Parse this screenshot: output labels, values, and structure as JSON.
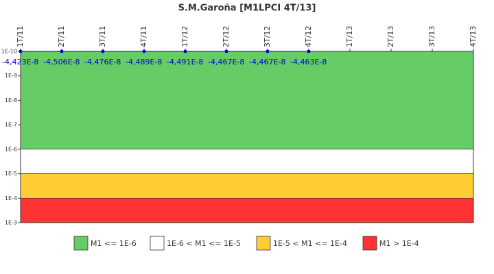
{
  "chart_data": {
    "type": "line",
    "title": "S.M.Garoña [M1LPCI 4T/13]",
    "categories": [
      "1T/11",
      "2T/11",
      "3T/11",
      "4T/11",
      "1T/12",
      "2T/12",
      "3T/12",
      "4T/12",
      "1T/13",
      "2T/13",
      "3T/13",
      "4T/13"
    ],
    "series": [
      {
        "color": "#0000cc",
        "values": [
          -4.423e-08,
          -4.506e-08,
          -4.476e-08,
          -4.489e-08,
          -4.491e-08,
          -4.467e-08,
          -4.467e-08,
          -4.463e-08,
          null,
          null,
          null,
          null
        ],
        "value_labels": [
          "-4,423E-8",
          "-4,506E-8",
          "-4,476E-8",
          "-4,489E-8",
          "-4,491E-8",
          "-4,467E-8",
          "-4,467E-8",
          "-4,463E-8",
          null,
          null,
          null,
          null
        ]
      }
    ],
    "log_scale": true,
    "ylim": [
      1e-10,
      0.001
    ],
    "yticks": [
      {
        "value": 1e-10,
        "label": "1E-10"
      },
      {
        "value": 1e-09,
        "label": "1E-9"
      },
      {
        "value": 1e-08,
        "label": "1E-8"
      },
      {
        "value": 1e-07,
        "label": "1E-7"
      },
      {
        "value": 1e-06,
        "label": "1E-6"
      },
      {
        "value": 1e-05,
        "label": "1E-5"
      },
      {
        "value": 0.0001,
        "label": "1E-4"
      },
      {
        "value": 0.001,
        "label": "1E-3"
      }
    ],
    "bands": [
      {
        "name": "M1 <= 1E-6",
        "color": "#66cc66",
        "range": [
          1e-10,
          1e-06
        ]
      },
      {
        "name": "1E-6 < M1 <= 1E-5",
        "color": "#ffffff",
        "range": [
          1e-06,
          1e-05
        ]
      },
      {
        "name": "1E-5 < M1 <= 1E-4",
        "color": "#ffcc33",
        "range": [
          1e-05,
          0.0001
        ]
      },
      {
        "name": "M1 > 1E-4",
        "color": "#ff3333",
        "range": [
          0.0001,
          0.001
        ]
      }
    ]
  }
}
